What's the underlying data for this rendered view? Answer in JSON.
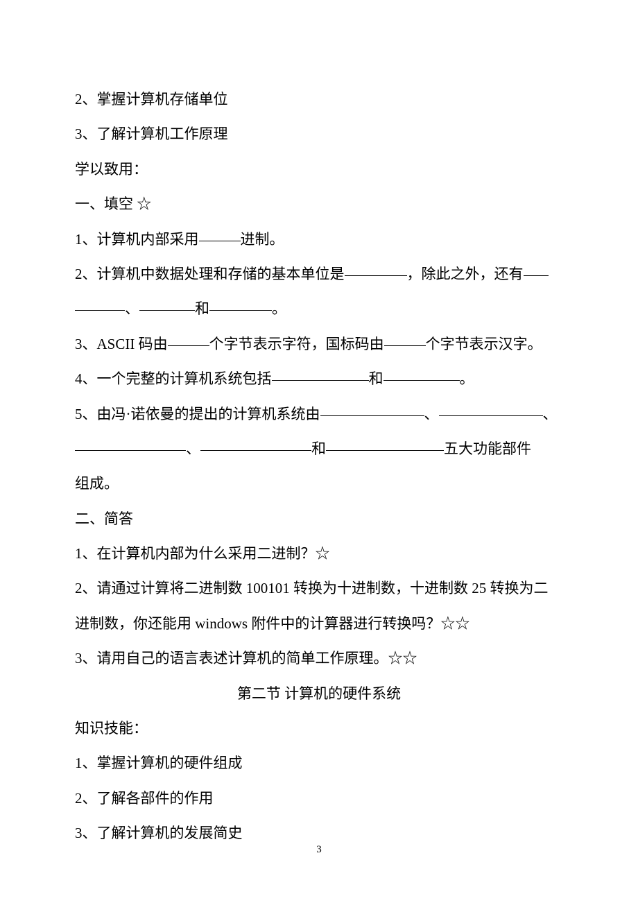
{
  "lines": {
    "l1": "2、掌握计算机存储单位",
    "l2": "3、了解计算机工作原理",
    "l3": "学以致用：",
    "l4": "一、填空  ☆",
    "q1_a": "1、计算机内部采用",
    "q1_b": "进制。",
    "q2_a": "2、计算机中数据处理和存储的基本单位是",
    "q2_b": "，除此之外，还有",
    "q2_c": "、",
    "q2_d": "和",
    "q2_e": "。",
    "q3_a": "3、",
    "q3_ascii": "ASCII",
    "q3_b": " 码由",
    "q3_c": "个字节表示字符，国标码由",
    "q3_d": "个字节表示汉字。",
    "q4_a": "4、一个完整的计算机系统包括",
    "q4_b": "和",
    "q4_c": "。",
    "q5_a": "5、由冯·诺依曼的提出的计算机系统由",
    "q5_b": "、",
    "q5_c": "、",
    "q5_d": "、",
    "q5_e": "和",
    "q5_f": "五大功能部件",
    "q5_g": "组成。",
    "s2_h": "二、简答",
    "s2_1": "1、在计算机内部为什么采用二进制？☆",
    "s2_2a": "2、请通过计算将二进制数 ",
    "s2_2num1": "100101",
    "s2_2b": " 转换为十进制数，十进制数 ",
    "s2_2num2": "25",
    "s2_2c": " 转换为二",
    "s2_2d": "进制数，你还能用 ",
    "s2_2win": "windows",
    "s2_2e": " 附件中的计算器进行转换吗？☆☆",
    "s2_3": "3、请用自己的语言表述计算机的简单工作原理。☆☆",
    "title2": "第二节    计算机的硬件系统",
    "k_h": "知识技能：",
    "k1": "1、掌握计算机的硬件组成",
    "k2": "2、了解各部件的作用",
    "k3": "3、了解计算机的发展简史"
  },
  "pageNumber": "3"
}
